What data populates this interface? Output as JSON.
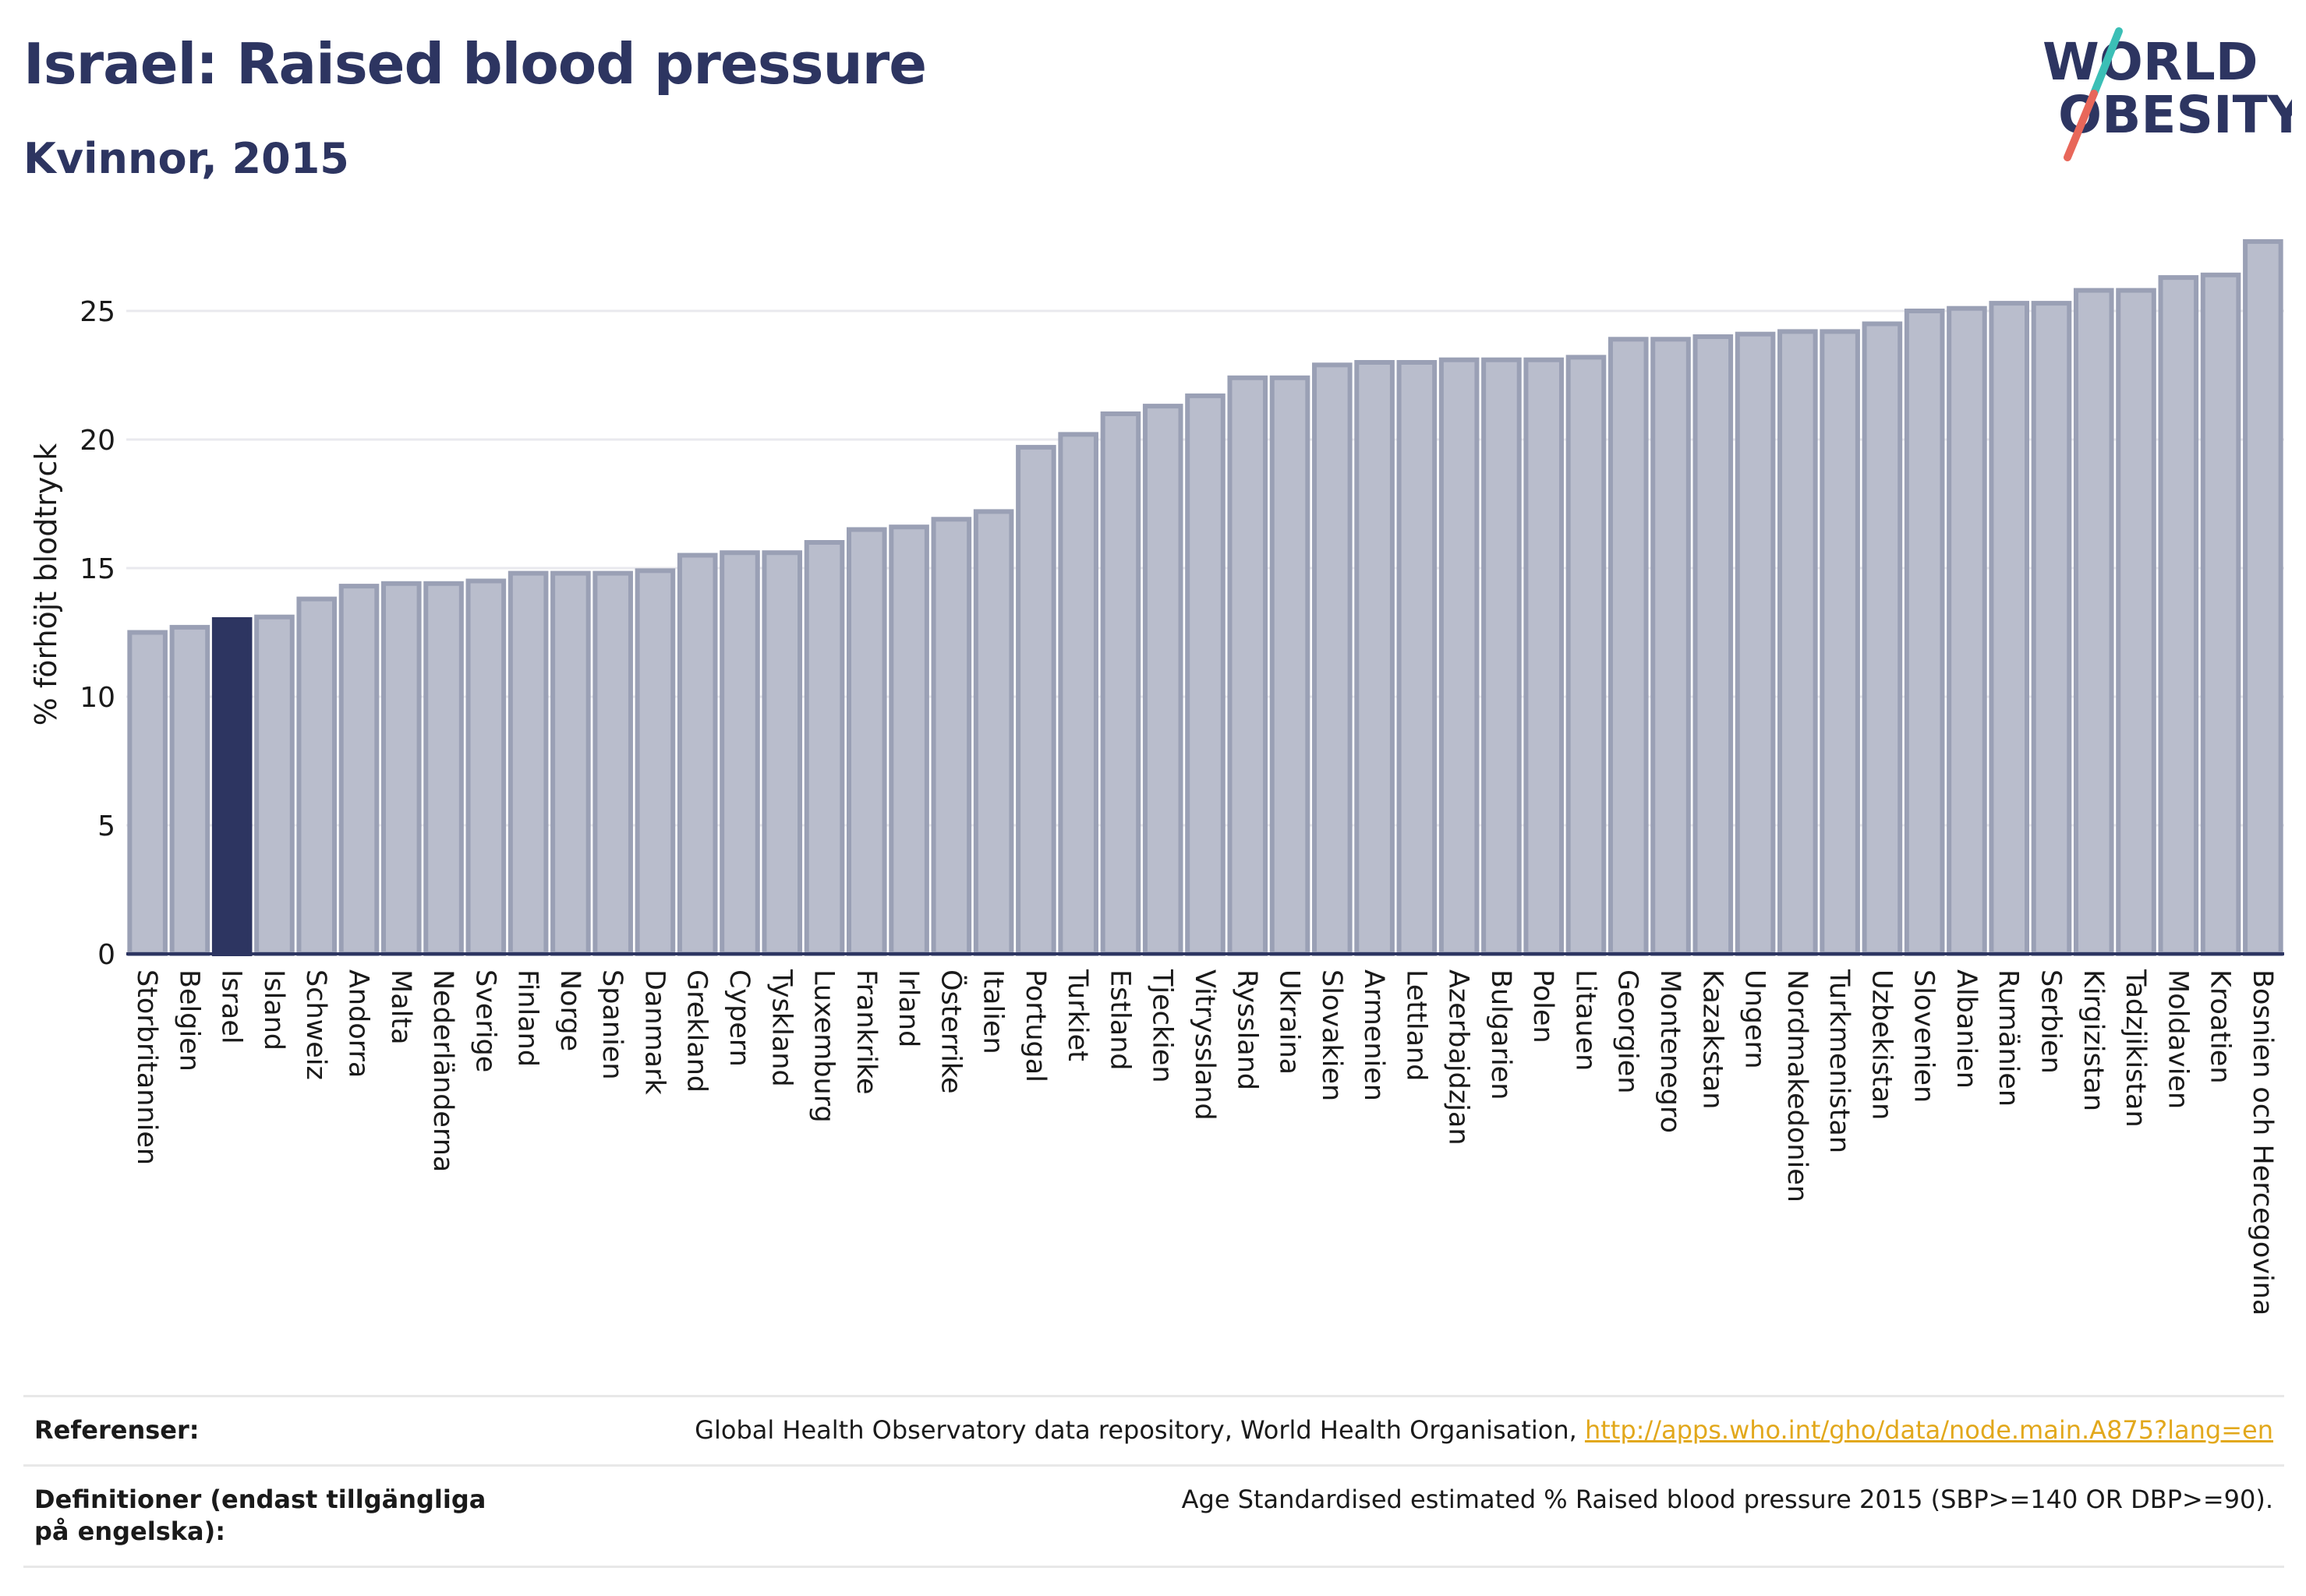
{
  "header": {
    "title": "Israel: Raised blood pressure",
    "subtitle": "Kvinnor, 2015"
  },
  "logo": {
    "line1": "WORLD",
    "line2": "OBESITY",
    "colors": {
      "text": "#2d3561",
      "slash_teal": "#3bbfb6",
      "slash_coral": "#e8675a"
    }
  },
  "colors": {
    "bar_default": "#b9bdcc",
    "bar_stroke": "#9aa0b5",
    "bar_highlight": "#2d3561",
    "grid": "#e9e9ee",
    "axis": "#2d3561"
  },
  "chart_data": {
    "type": "bar",
    "ylabel": "% förhöjt blodtryck",
    "xlabel": "",
    "ylim": [
      0,
      28
    ],
    "yticks": [
      0,
      5,
      10,
      15,
      20,
      25
    ],
    "grid": true,
    "highlight": "Israel",
    "categories": [
      "Storbritannien",
      "Belgien",
      "Israel",
      "Island",
      "Schweiz",
      "Andorra",
      "Malta",
      "Nederländerna",
      "Sverige",
      "Finland",
      "Norge",
      "Spanien",
      "Danmark",
      "Grekland",
      "Cypern",
      "Tyskland",
      "Luxemburg",
      "Frankrike",
      "Irland",
      "Österrike",
      "Italien",
      "Portugal",
      "Turkiet",
      "Estland",
      "Tjeckien",
      "Vitryssland",
      "Ryssland",
      "Ukraina",
      "Slovakien",
      "Armenien",
      "Lettland",
      "Azerbajdzjan",
      "Bulgarien",
      "Polen",
      "Litauen",
      "Georgien",
      "Montenegro",
      "Kazakstan",
      "Ungern",
      "Nordmakedonien",
      "Turkmenistan",
      "Uzbekistan",
      "Slovenien",
      "Albanien",
      "Rumänien",
      "Serbien",
      "Kirgizistan",
      "Tadzjikistan",
      "Moldavien",
      "Kroatien",
      "Bosnien och Hercegovina"
    ],
    "values": [
      12.5,
      12.7,
      13.0,
      13.1,
      13.8,
      14.3,
      14.4,
      14.4,
      14.5,
      14.8,
      14.8,
      14.8,
      14.9,
      15.5,
      15.6,
      15.6,
      16.0,
      16.5,
      16.6,
      16.9,
      17.2,
      19.7,
      20.2,
      21.0,
      21.3,
      21.7,
      22.4,
      22.4,
      22.9,
      23.0,
      23.0,
      23.1,
      23.1,
      23.1,
      23.2,
      23.9,
      23.9,
      24.0,
      24.1,
      24.2,
      24.2,
      24.5,
      25.0,
      25.1,
      25.3,
      25.3,
      25.8,
      25.8,
      26.3,
      26.4,
      27.7
    ]
  },
  "references": {
    "label": "Referenser:",
    "text": "Global Health Observatory data repository, World Health Organisation,",
    "link": "http://apps.who.int/gho/data/node.main.A875?lang=en"
  },
  "definitions": {
    "label": "Definitioner (endast tillgängliga på engelska):",
    "text": "Age Standardised estimated % Raised blood pressure 2015 (SBP>=140 OR DBP>=90)."
  }
}
